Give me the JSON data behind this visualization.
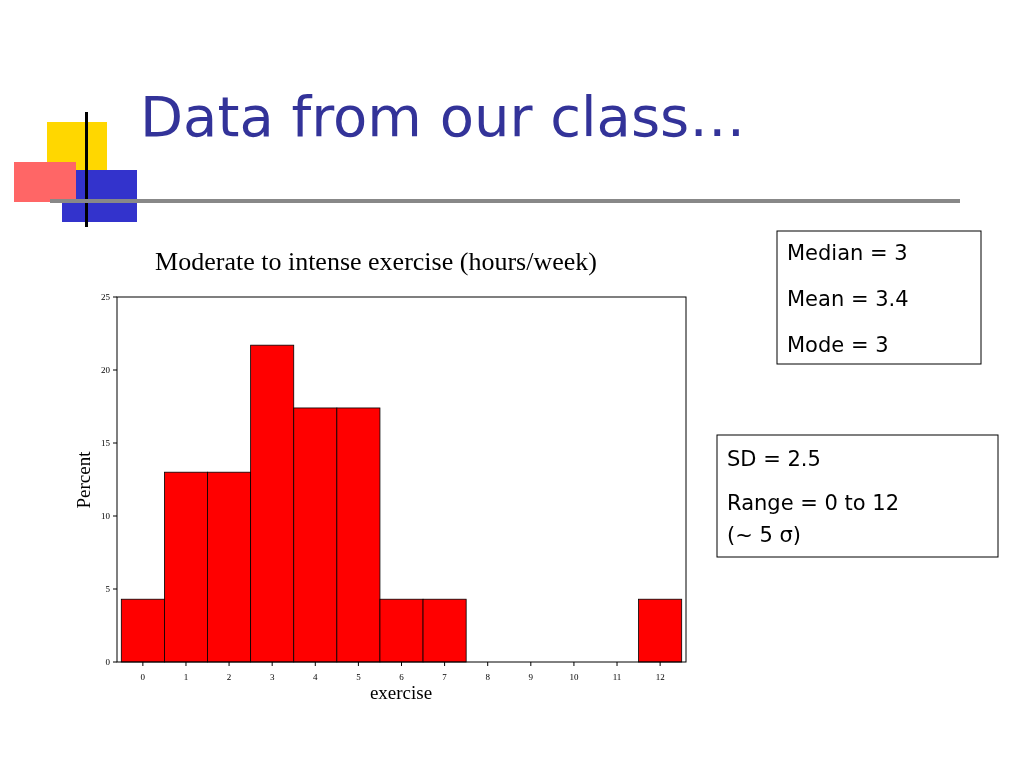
{
  "chart_data": {
    "type": "histogram",
    "title": "Data from our class…",
    "subtitle": "Moderate to intense exercise (hours/week)",
    "xlabel": "exercise",
    "ylabel": "Percent",
    "bins": [
      -0.5,
      0.5,
      1.5,
      2.5,
      3.5,
      4.5,
      5.5,
      6.5,
      7.5,
      8.5,
      9.5,
      10.5,
      11.5,
      12.5
    ],
    "values": [
      4.3,
      13,
      13,
      21.7,
      17.4,
      17.4,
      4.3,
      4.3,
      0,
      0,
      0,
      0,
      4.3
    ],
    "color": "#ff0000",
    "xlim": [
      -0.6,
      12.6
    ],
    "xticks": [
      0,
      1,
      2,
      3,
      4,
      5,
      6,
      7,
      8,
      9,
      10,
      11,
      12
    ],
    "ylim": [
      0,
      25
    ],
    "yticks": [
      0,
      5,
      10,
      15,
      20,
      25
    ],
    "grid": false,
    "annotations": [
      "Median = 3",
      "Mean = 3.4",
      "Mode = 3",
      "SD = 2.5",
      "Range = 0 to 12",
      "(~ 5 σ)"
    ]
  }
}
